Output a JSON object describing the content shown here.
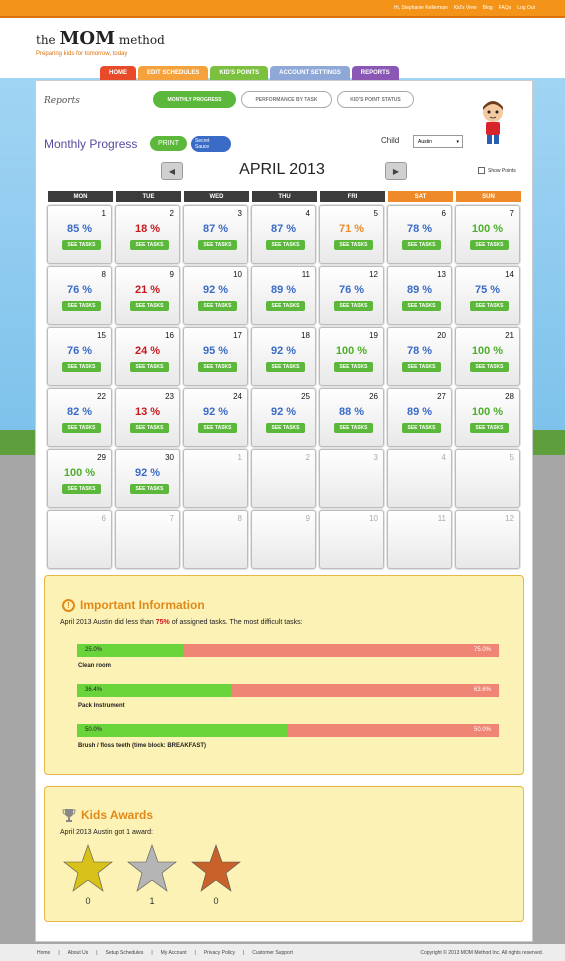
{
  "topbar": {
    "greeting": "Hi, Stephanie Kellerman",
    "links": [
      "Kid's View",
      "Blog",
      "FAQs",
      "Log Out"
    ]
  },
  "logo": {
    "the": "the",
    "mom": "MOM",
    "method": "method",
    "tagline": "Preparing kids for tomorrow, today"
  },
  "nav": {
    "tabs": [
      {
        "label": "HOME",
        "color": "#e84b2a"
      },
      {
        "label": "EDIT SCHEDULES",
        "color": "#f5a23c"
      },
      {
        "label": "KID'S POINTS",
        "color": "#7cc040"
      },
      {
        "label": "ACCOUNT SETTINGS",
        "color": "#8fa8d8"
      },
      {
        "label": "REPORTS",
        "color": "#8a57b5"
      }
    ]
  },
  "reports": {
    "label": "Reports",
    "subtabs": [
      "MONTHLY PROGRESS",
      "PERFORMANCE BY TASK",
      "KID'S POINT STATUS"
    ]
  },
  "monthly": {
    "title": "Monthly Progress",
    "print": "PRINT",
    "secret_line1": "Secret",
    "secret_line2": "Sauce",
    "child_label": "Child",
    "child_value": "Austin",
    "month": "APRIL 2013",
    "show_points": "Show Points",
    "see_tasks": "SEE TASKS"
  },
  "weekdays": [
    {
      "label": "MON",
      "weekend": false
    },
    {
      "label": "TUE",
      "weekend": false
    },
    {
      "label": "WED",
      "weekend": false
    },
    {
      "label": "THU",
      "weekend": false
    },
    {
      "label": "FRI",
      "weekend": false
    },
    {
      "label": "SAT",
      "weekend": true
    },
    {
      "label": "SUN",
      "weekend": true
    }
  ],
  "calendar": [
    {
      "day": "1",
      "pct": "85 %",
      "color": "#3a6bc7"
    },
    {
      "day": "2",
      "pct": "18 %",
      "color": "#c8181e"
    },
    {
      "day": "3",
      "pct": "87 %",
      "color": "#3a6bc7"
    },
    {
      "day": "4",
      "pct": "87 %",
      "color": "#3a6bc7"
    },
    {
      "day": "5",
      "pct": "71 %",
      "color": "#ee8a2a"
    },
    {
      "day": "6",
      "pct": "78 %",
      "color": "#3a6bc7"
    },
    {
      "day": "7",
      "pct": "100 %",
      "color": "#4caf2a"
    },
    {
      "day": "8",
      "pct": "76 %",
      "color": "#3a6bc7"
    },
    {
      "day": "9",
      "pct": "21 %",
      "color": "#c8181e"
    },
    {
      "day": "10",
      "pct": "92 %",
      "color": "#3a6bc7"
    },
    {
      "day": "11",
      "pct": "89 %",
      "color": "#3a6bc7"
    },
    {
      "day": "12",
      "pct": "76 %",
      "color": "#3a6bc7"
    },
    {
      "day": "13",
      "pct": "89 %",
      "color": "#3a6bc7"
    },
    {
      "day": "14",
      "pct": "75 %",
      "color": "#3a6bc7"
    },
    {
      "day": "15",
      "pct": "76 %",
      "color": "#3a6bc7"
    },
    {
      "day": "16",
      "pct": "24 %",
      "color": "#c8181e"
    },
    {
      "day": "17",
      "pct": "95 %",
      "color": "#3a6bc7"
    },
    {
      "day": "18",
      "pct": "92 %",
      "color": "#3a6bc7"
    },
    {
      "day": "19",
      "pct": "100 %",
      "color": "#4caf2a"
    },
    {
      "day": "20",
      "pct": "78 %",
      "color": "#3a6bc7"
    },
    {
      "day": "21",
      "pct": "100 %",
      "color": "#4caf2a"
    },
    {
      "day": "22",
      "pct": "82 %",
      "color": "#3a6bc7"
    },
    {
      "day": "23",
      "pct": "13 %",
      "color": "#c8181e"
    },
    {
      "day": "24",
      "pct": "92 %",
      "color": "#3a6bc7"
    },
    {
      "day": "25",
      "pct": "92 %",
      "color": "#3a6bc7"
    },
    {
      "day": "26",
      "pct": "88 %",
      "color": "#3a6bc7"
    },
    {
      "day": "27",
      "pct": "89 %",
      "color": "#3a6bc7"
    },
    {
      "day": "28",
      "pct": "100 %",
      "color": "#4caf2a"
    },
    {
      "day": "29",
      "pct": "100 %",
      "color": "#4caf2a"
    },
    {
      "day": "30",
      "pct": "92 %",
      "color": "#3a6bc7"
    },
    {
      "day": "1",
      "out": true
    },
    {
      "day": "2",
      "out": true
    },
    {
      "day": "3",
      "out": true
    },
    {
      "day": "4",
      "out": true
    },
    {
      "day": "5",
      "out": true
    },
    {
      "day": "6",
      "out": true
    },
    {
      "day": "7",
      "out": true
    },
    {
      "day": "8",
      "out": true
    },
    {
      "day": "9",
      "out": true
    },
    {
      "day": "10",
      "out": true
    },
    {
      "day": "11",
      "out": true
    },
    {
      "day": "12",
      "out": true
    }
  ],
  "info": {
    "title": "Important Information",
    "text_before": "April 2013 Austin did less than ",
    "text_pct": "75%",
    "text_after": " of assigned tasks. The most difficult tasks:",
    "tasks": [
      {
        "name": "Clean room",
        "done": 25.0,
        "done_label": "25.0%",
        "missed_label": "75.0%"
      },
      {
        "name": "Pack Instrument",
        "done": 36.4,
        "done_label": "36.4%",
        "missed_label": "63.6%"
      },
      {
        "name": "Brush / floss teeth (time block: BREAKFAST)",
        "done": 50.0,
        "done_label": "50.0%",
        "missed_label": "50.0%"
      }
    ]
  },
  "awards": {
    "title": "Kids Awards",
    "text": "April 2013 Austin got 1 award:",
    "stars": [
      {
        "name": "gold",
        "color": "#d8c21a",
        "count": "0"
      },
      {
        "name": "silver",
        "color": "#b5b5b5",
        "count": "1"
      },
      {
        "name": "bronze",
        "color": "#c8612a",
        "count": "0"
      }
    ]
  },
  "footer": {
    "links": [
      "Home",
      "About Us",
      "Setup Schedules",
      "My Account",
      "Privacy Policy",
      "Customer Support"
    ],
    "copyright": "Copyright © 2013 MOM Method Inc. All rights reserved."
  }
}
